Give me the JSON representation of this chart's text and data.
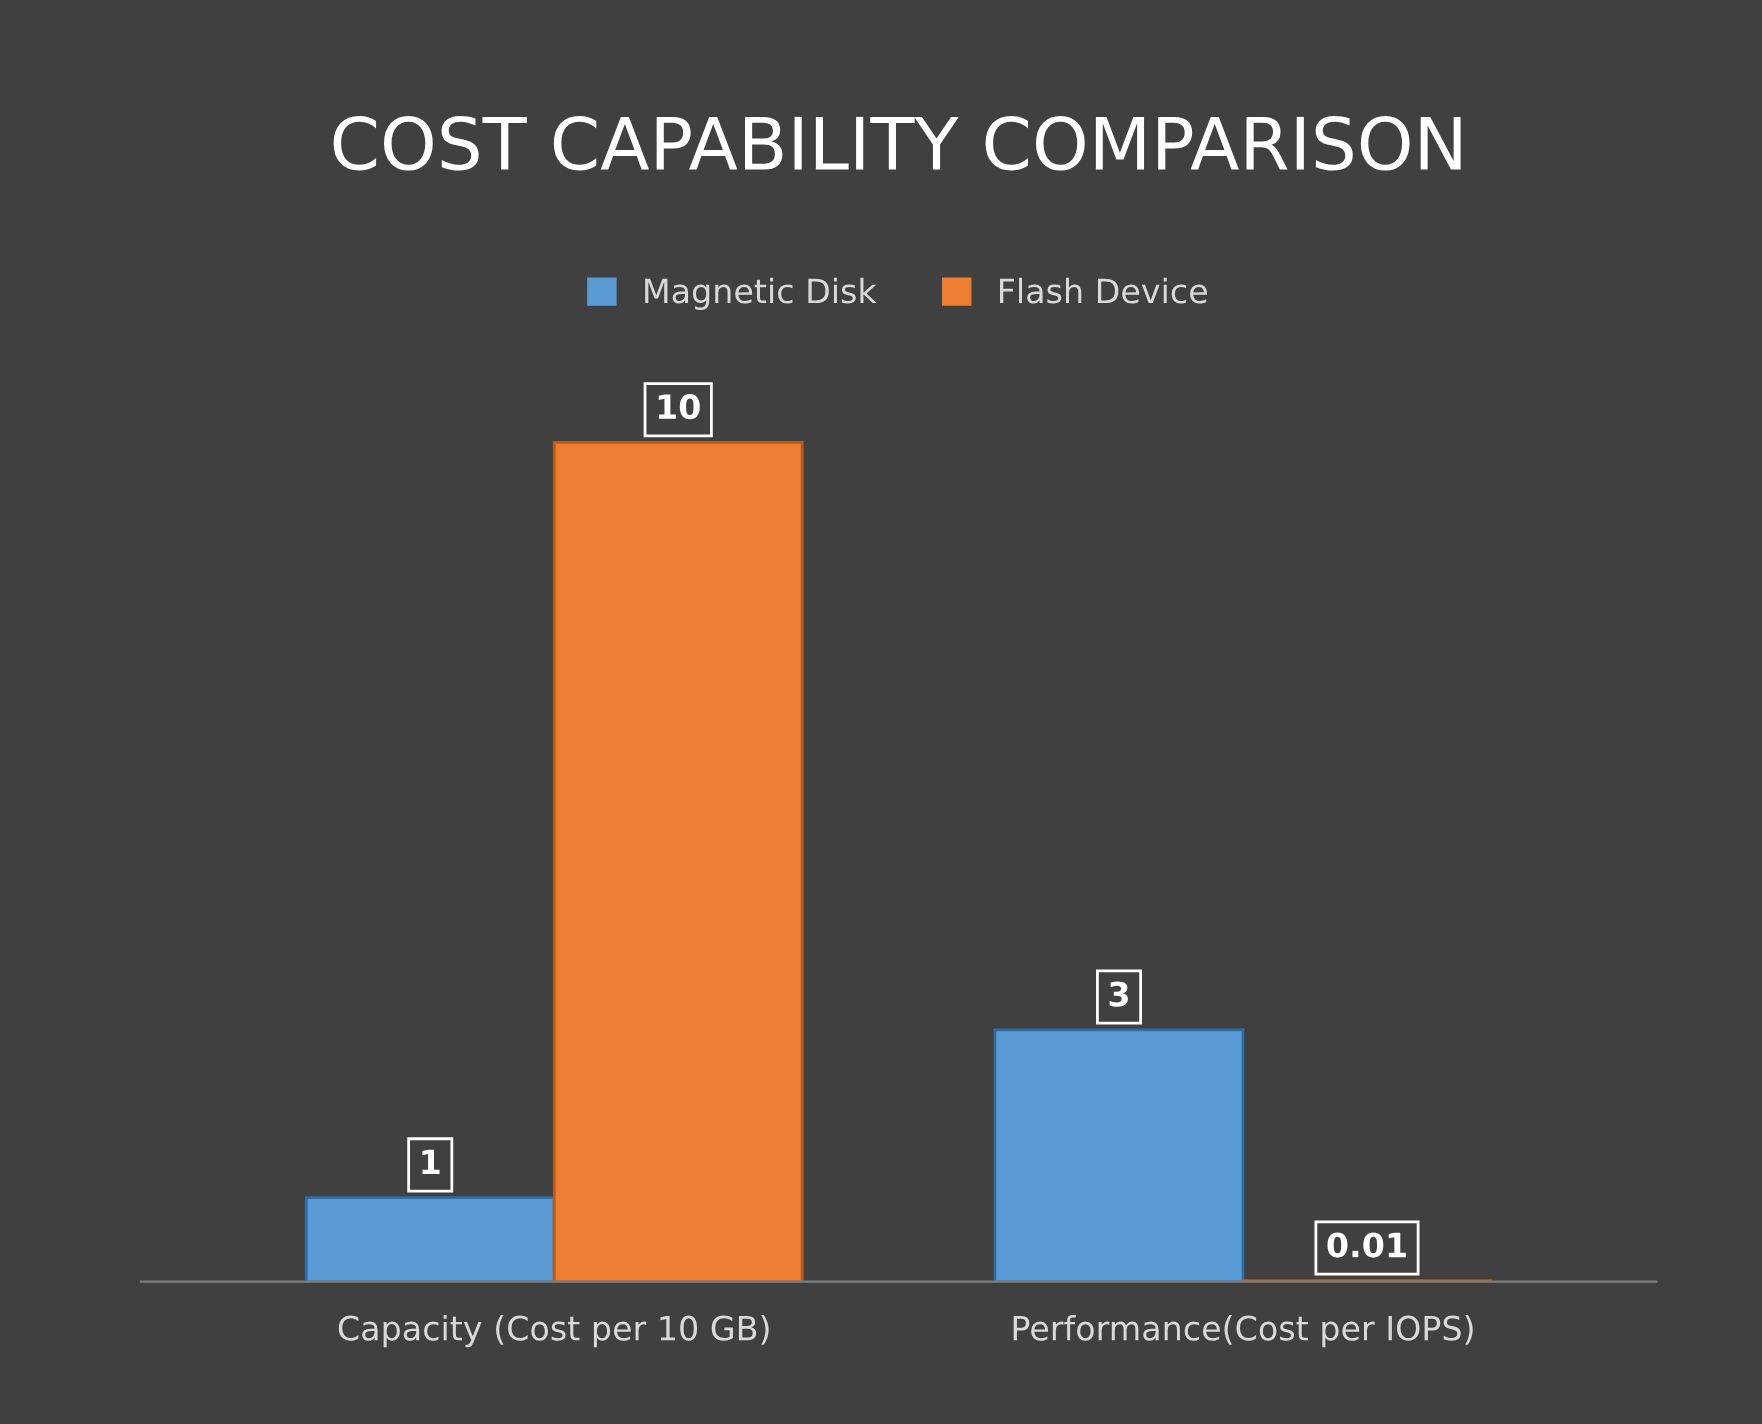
{
  "chart_data": {
    "type": "bar",
    "title": "COST CAPABILITY COMPARISON",
    "categories": [
      "Capacity (Cost per 10 GB)",
      "Performance(Cost per IOPS)"
    ],
    "series": [
      {
        "name": "Magnetic Disk",
        "color": "#5b9bd5",
        "values": [
          1,
          3
        ]
      },
      {
        "name": "Flash Device",
        "color": "#ed7d31",
        "values": [
          10,
          0.01
        ]
      }
    ],
    "data_labels": true,
    "legend": "top",
    "grid": false
  }
}
